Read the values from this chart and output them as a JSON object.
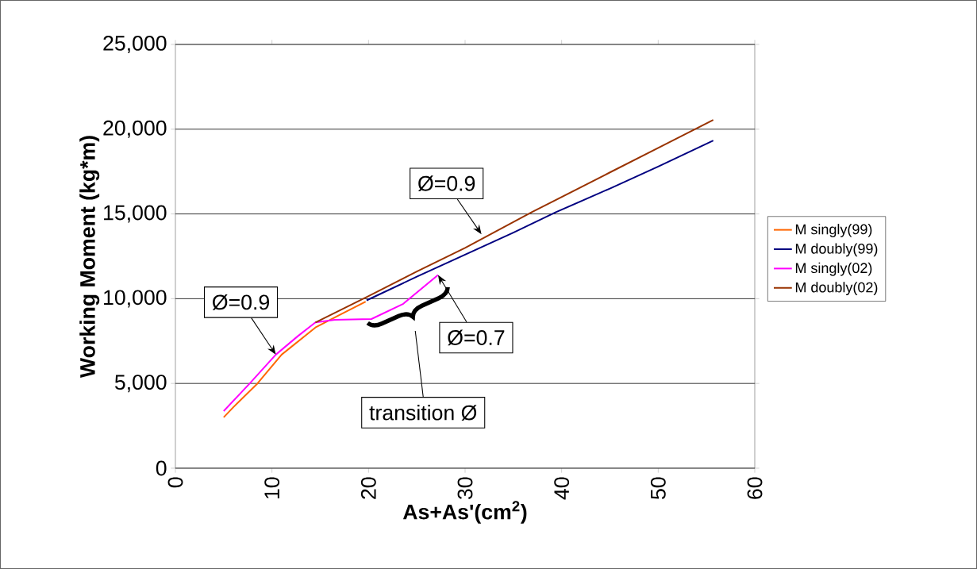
{
  "chart_data": {
    "type": "line",
    "xlabel": "As+As'(cm$^{2}$)",
    "ylabel": "Working Moment (kg*m)",
    "series": [
      {
        "name": "M singly(99)",
        "color": "#ff6600",
        "x": [
          5,
          6,
          8.5,
          11,
          14.5,
          17,
          19.7
        ],
        "values": [
          3000,
          3600,
          5000,
          6700,
          8300,
          9040,
          9830
        ]
      },
      {
        "name": "M doubly(99)",
        "color": "#000080",
        "x": [
          19.8,
          25,
          30,
          35,
          39.4,
          45,
          50,
          55.7
        ],
        "values": [
          9900,
          11300,
          12600,
          13900,
          15100,
          16500,
          17800,
          19330
        ]
      },
      {
        "name": "M singly(02)",
        "color": "#ff00ff",
        "x": [
          5,
          7.7,
          10.4,
          12.7,
          14.5,
          16.5,
          20.3,
          23.6,
          27.2
        ],
        "values": [
          3370,
          5000,
          6700,
          7800,
          8600,
          8750,
          8800,
          9700,
          11400
        ]
      },
      {
        "name": "M doubly(02)",
        "color": "#993300",
        "x": [
          14.5,
          20,
          25,
          30,
          36.9,
          45,
          50,
          55.7
        ],
        "values": [
          8600,
          10150,
          11600,
          13000,
          15100,
          17450,
          18900,
          20550
        ]
      }
    ],
    "xlim": [
      0,
      60
    ],
    "xticks": [
      0,
      10,
      20,
      30,
      40,
      50,
      60
    ],
    "ylim": [
      0,
      25000
    ],
    "yticks": [
      {
        "value": 0,
        "label": "0"
      },
      {
        "value": 5000,
        "label": "5,000"
      },
      {
        "value": 10000,
        "label": "10,000"
      },
      {
        "value": 15000,
        "label": "15,000"
      },
      {
        "value": 20000,
        "label": "20,000"
      },
      {
        "value": 25000,
        "label": "25,000"
      }
    ],
    "annotations": [
      {
        "text": "Ø=0.9",
        "x": 10.4,
        "y": 6700
      },
      {
        "text": "Ø=0.9",
        "x": 31.7,
        "y": 13800
      },
      {
        "text": "Ø=0.7",
        "x": 27.2,
        "y": 11400
      },
      "transition Ø"
    ],
    "grid": "y",
    "legend": "right",
    "marker": "none",
    "line_style": "solid"
  }
}
